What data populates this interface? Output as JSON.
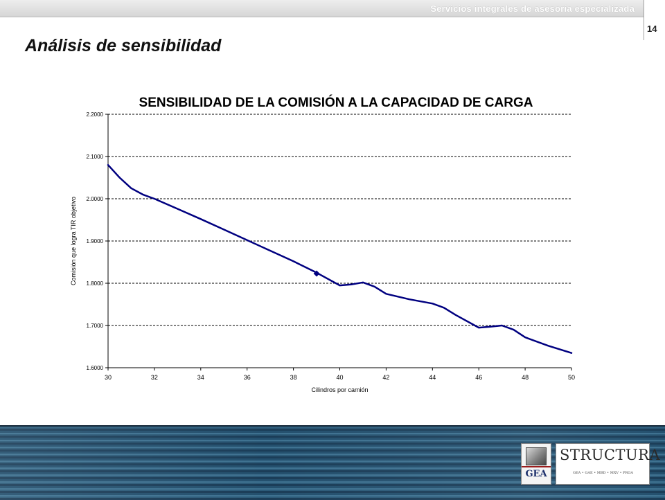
{
  "header": {
    "tagline": "Servicios integrales de asesoría especializada",
    "page_number": "14"
  },
  "slide": {
    "title": "Análisis de sensibilidad"
  },
  "chart_data": {
    "type": "line",
    "title": "SENSIBILIDAD DE LA COMISIÓN A LA CAPACIDAD DE CARGA",
    "xlabel": "Cilindros por camión",
    "ylabel": "Comisión que logra TIR objetivo",
    "xlim": [
      30,
      50
    ],
    "ylim": [
      1.6,
      2.2
    ],
    "x_ticks": [
      "30",
      "32",
      "34",
      "36",
      "38",
      "40",
      "42",
      "44",
      "46",
      "48",
      "50"
    ],
    "y_ticks": [
      "1.6000",
      "1.7000",
      "1.8000",
      "1.9000",
      "2.0000",
      "2.1000",
      "2.2000"
    ],
    "grid": "horizontal dashed",
    "line_color": "#000080",
    "series": [
      {
        "x": [
          30,
          30.5,
          31,
          31.5,
          32,
          33,
          34,
          35,
          36,
          37,
          38,
          39,
          40,
          40.5,
          41,
          41.5,
          42,
          43,
          44,
          44.5,
          45,
          46,
          46.5,
          47,
          47.5,
          48,
          49,
          50
        ],
        "y": [
          2.08,
          2.05,
          2.025,
          2.01,
          2.0,
          1.976,
          1.952,
          1.927,
          1.902,
          1.877,
          1.852,
          1.825,
          1.795,
          1.797,
          1.802,
          1.792,
          1.775,
          1.762,
          1.752,
          1.742,
          1.725,
          1.695,
          1.697,
          1.7,
          1.69,
          1.672,
          1.652,
          1.635
        ]
      }
    ],
    "marker": {
      "x": 39,
      "y": 1.823
    }
  },
  "footer": {
    "logo_gea": "GEA",
    "logo_structura": "STRUCTURA",
    "logo_structura_sub": "GEA • GAE • MBD • MXV • PROA"
  }
}
